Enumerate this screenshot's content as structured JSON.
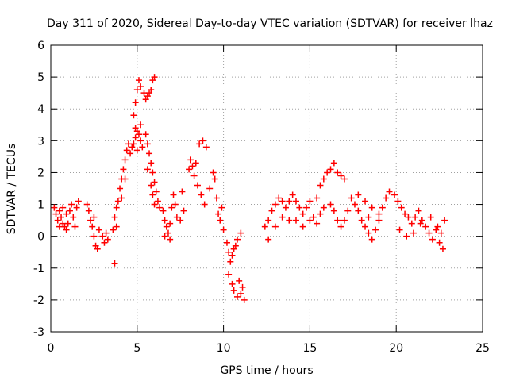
{
  "chart_data": {
    "type": "scatter",
    "title": "Day 311 of 2020, Sidereal Day-to-day VTEC variation (SDTVAR) for receiver lhaz",
    "xlabel": "GPS time / hours",
    "ylabel": "SDTVAR / TECUs",
    "xlim": [
      0,
      25
    ],
    "ylim": [
      -3,
      6
    ],
    "xticks": [
      0,
      5,
      10,
      15,
      20,
      25
    ],
    "yticks": [
      -3,
      -2,
      -1,
      0,
      1,
      2,
      3,
      4,
      5,
      6
    ],
    "grid": true,
    "marker": "+",
    "series": [
      {
        "name": "SDTVAR",
        "color": "#ff0000",
        "points": [
          [
            0.2,
            0.9
          ],
          [
            0.3,
            0.7
          ],
          [
            0.4,
            0.5
          ],
          [
            0.5,
            0.8
          ],
          [
            0.6,
            0.6
          ],
          [
            0.7,
            0.4
          ],
          [
            0.8,
            0.3
          ],
          [
            0.9,
            0.2
          ],
          [
            1.0,
            0.4
          ],
          [
            1.1,
            0.8
          ],
          [
            1.2,
            1.0
          ],
          [
            0.5,
            0.3
          ],
          [
            0.7,
            0.9
          ],
          [
            0.9,
            0.7
          ],
          [
            1.3,
            0.6
          ],
          [
            1.5,
            0.9
          ],
          [
            1.6,
            1.1
          ],
          [
            1.4,
            0.3
          ],
          [
            2.1,
            1.0
          ],
          [
            2.2,
            0.8
          ],
          [
            2.3,
            0.5
          ],
          [
            2.4,
            0.3
          ],
          [
            2.5,
            0.0
          ],
          [
            2.6,
            -0.3
          ],
          [
            2.7,
            -0.4
          ],
          [
            2.5,
            0.6
          ],
          [
            2.8,
            0.2
          ],
          [
            3.1,
            -0.2
          ],
          [
            3.2,
            0.1
          ],
          [
            3.3,
            -0.1
          ],
          [
            3.0,
            0.0
          ],
          [
            3.6,
            0.2
          ],
          [
            3.7,
            0.6
          ],
          [
            3.8,
            0.9
          ],
          [
            3.9,
            1.1
          ],
          [
            4.0,
            1.5
          ],
          [
            4.1,
            1.8
          ],
          [
            4.2,
            2.1
          ],
          [
            4.3,
            2.4
          ],
          [
            4.4,
            2.7
          ],
          [
            4.5,
            2.9
          ],
          [
            4.6,
            2.6
          ],
          [
            4.7,
            2.8
          ],
          [
            3.7,
            -0.85
          ],
          [
            3.8,
            0.3
          ],
          [
            4.1,
            1.2
          ],
          [
            4.3,
            1.8
          ],
          [
            4.8,
            2.9
          ],
          [
            4.9,
            3.1
          ],
          [
            5.0,
            3.3
          ],
          [
            5.1,
            3.2
          ],
          [
            5.2,
            3.0
          ],
          [
            5.3,
            2.8
          ],
          [
            5.0,
            2.7
          ],
          [
            4.9,
            3.4
          ],
          [
            5.2,
            3.5
          ],
          [
            4.8,
            3.8
          ],
          [
            4.9,
            4.2
          ],
          [
            5.0,
            4.6
          ],
          [
            5.1,
            4.9
          ],
          [
            5.2,
            4.7
          ],
          [
            5.4,
            4.5
          ],
          [
            5.5,
            4.3
          ],
          [
            5.7,
            4.5
          ],
          [
            5.8,
            4.6
          ],
          [
            5.9,
            4.9
          ],
          [
            6.0,
            5.0
          ],
          [
            5.6,
            4.4
          ],
          [
            5.5,
            3.2
          ],
          [
            5.6,
            2.9
          ],
          [
            5.7,
            2.6
          ],
          [
            5.8,
            2.3
          ],
          [
            5.9,
            2.0
          ],
          [
            6.0,
            1.7
          ],
          [
            6.1,
            1.4
          ],
          [
            6.2,
            1.1
          ],
          [
            6.3,
            0.9
          ],
          [
            5.6,
            2.1
          ],
          [
            5.8,
            1.6
          ],
          [
            5.9,
            1.3
          ],
          [
            6.0,
            1.0
          ],
          [
            6.5,
            0.8
          ],
          [
            6.6,
            0.5
          ],
          [
            6.7,
            0.3
          ],
          [
            6.8,
            0.1
          ],
          [
            6.9,
            0.4
          ],
          [
            7.0,
            0.9
          ],
          [
            7.1,
            1.3
          ],
          [
            7.2,
            1.0
          ],
          [
            7.3,
            0.6
          ],
          [
            7.5,
            0.5
          ],
          [
            7.6,
            1.4
          ],
          [
            7.7,
            0.8
          ],
          [
            6.6,
            0.0
          ],
          [
            6.9,
            -0.1
          ],
          [
            8.0,
            2.1
          ],
          [
            8.1,
            2.4
          ],
          [
            8.2,
            2.2
          ],
          [
            8.3,
            1.9
          ],
          [
            8.4,
            2.3
          ],
          [
            8.6,
            2.9
          ],
          [
            8.8,
            3.0
          ],
          [
            9.0,
            2.8
          ],
          [
            8.5,
            1.6
          ],
          [
            8.7,
            1.3
          ],
          [
            8.9,
            1.0
          ],
          [
            9.2,
            1.5
          ],
          [
            9.4,
            2.0
          ],
          [
            9.5,
            1.8
          ],
          [
            9.6,
            1.2
          ],
          [
            9.7,
            0.7
          ],
          [
            9.8,
            0.5
          ],
          [
            9.9,
            0.9
          ],
          [
            10.0,
            0.2
          ],
          [
            10.2,
            -0.2
          ],
          [
            10.3,
            -0.5
          ],
          [
            10.4,
            -0.8
          ],
          [
            10.5,
            -0.6
          ],
          [
            10.6,
            -0.4
          ],
          [
            10.7,
            -0.3
          ],
          [
            10.8,
            -0.1
          ],
          [
            11.0,
            0.1
          ],
          [
            10.3,
            -1.2
          ],
          [
            10.5,
            -1.5
          ],
          [
            10.6,
            -1.7
          ],
          [
            10.8,
            -1.9
          ],
          [
            11.0,
            -1.8
          ],
          [
            11.1,
            -1.6
          ],
          [
            11.2,
            -2.0
          ],
          [
            10.9,
            -1.4
          ],
          [
            12.4,
            0.3
          ],
          [
            12.6,
            0.5
          ],
          [
            12.8,
            0.8
          ],
          [
            13.0,
            1.0
          ],
          [
            13.2,
            1.2
          ],
          [
            13.4,
            1.1
          ],
          [
            13.6,
            0.9
          ],
          [
            13.8,
            1.1
          ],
          [
            14.0,
            1.3
          ],
          [
            14.2,
            1.1
          ],
          [
            14.4,
            0.9
          ],
          [
            14.6,
            0.7
          ],
          [
            14.8,
            0.9
          ],
          [
            15.0,
            1.1
          ],
          [
            15.2,
            0.6
          ],
          [
            15.4,
            0.4
          ],
          [
            15.6,
            0.7
          ],
          [
            15.8,
            0.9
          ],
          [
            12.6,
            -0.1
          ],
          [
            13.0,
            0.3
          ],
          [
            13.4,
            0.6
          ],
          [
            13.8,
            0.5
          ],
          [
            14.2,
            0.5
          ],
          [
            14.6,
            0.3
          ],
          [
            15.0,
            0.5
          ],
          [
            15.4,
            1.2
          ],
          [
            15.6,
            1.6
          ],
          [
            15.8,
            1.8
          ],
          [
            16.0,
            2.0
          ],
          [
            16.2,
            2.1
          ],
          [
            16.4,
            2.3
          ],
          [
            16.6,
            2.0
          ],
          [
            16.8,
            1.9
          ],
          [
            17.0,
            1.8
          ],
          [
            16.2,
            1.0
          ],
          [
            16.4,
            0.8
          ],
          [
            16.6,
            0.5
          ],
          [
            16.8,
            0.3
          ],
          [
            17.0,
            0.5
          ],
          [
            17.2,
            0.8
          ],
          [
            17.4,
            1.2
          ],
          [
            17.6,
            1.0
          ],
          [
            17.8,
            0.8
          ],
          [
            18.0,
            0.5
          ],
          [
            18.2,
            0.3
          ],
          [
            18.4,
            0.1
          ],
          [
            18.6,
            -0.1
          ],
          [
            18.8,
            0.2
          ],
          [
            19.0,
            0.5
          ],
          [
            19.2,
            0.9
          ],
          [
            19.4,
            1.2
          ],
          [
            19.6,
            1.4
          ],
          [
            17.8,
            1.3
          ],
          [
            18.2,
            1.1
          ],
          [
            18.6,
            0.9
          ],
          [
            19.0,
            0.7
          ],
          [
            18.4,
            0.6
          ],
          [
            19.9,
            1.3
          ],
          [
            20.1,
            1.1
          ],
          [
            20.3,
            0.9
          ],
          [
            20.5,
            0.7
          ],
          [
            20.7,
            0.6
          ],
          [
            20.9,
            0.4
          ],
          [
            21.1,
            0.6
          ],
          [
            21.3,
            0.8
          ],
          [
            21.5,
            0.5
          ],
          [
            21.7,
            0.3
          ],
          [
            21.9,
            0.1
          ],
          [
            22.1,
            -0.1
          ],
          [
            22.3,
            0.2
          ],
          [
            22.5,
            -0.2
          ],
          [
            22.7,
            -0.4
          ],
          [
            22.8,
            0.5
          ],
          [
            20.2,
            0.2
          ],
          [
            20.6,
            0.0
          ],
          [
            21.0,
            0.1
          ],
          [
            21.4,
            0.4
          ],
          [
            22.0,
            0.6
          ],
          [
            22.4,
            0.3
          ],
          [
            22.6,
            0.1
          ]
        ]
      }
    ]
  }
}
